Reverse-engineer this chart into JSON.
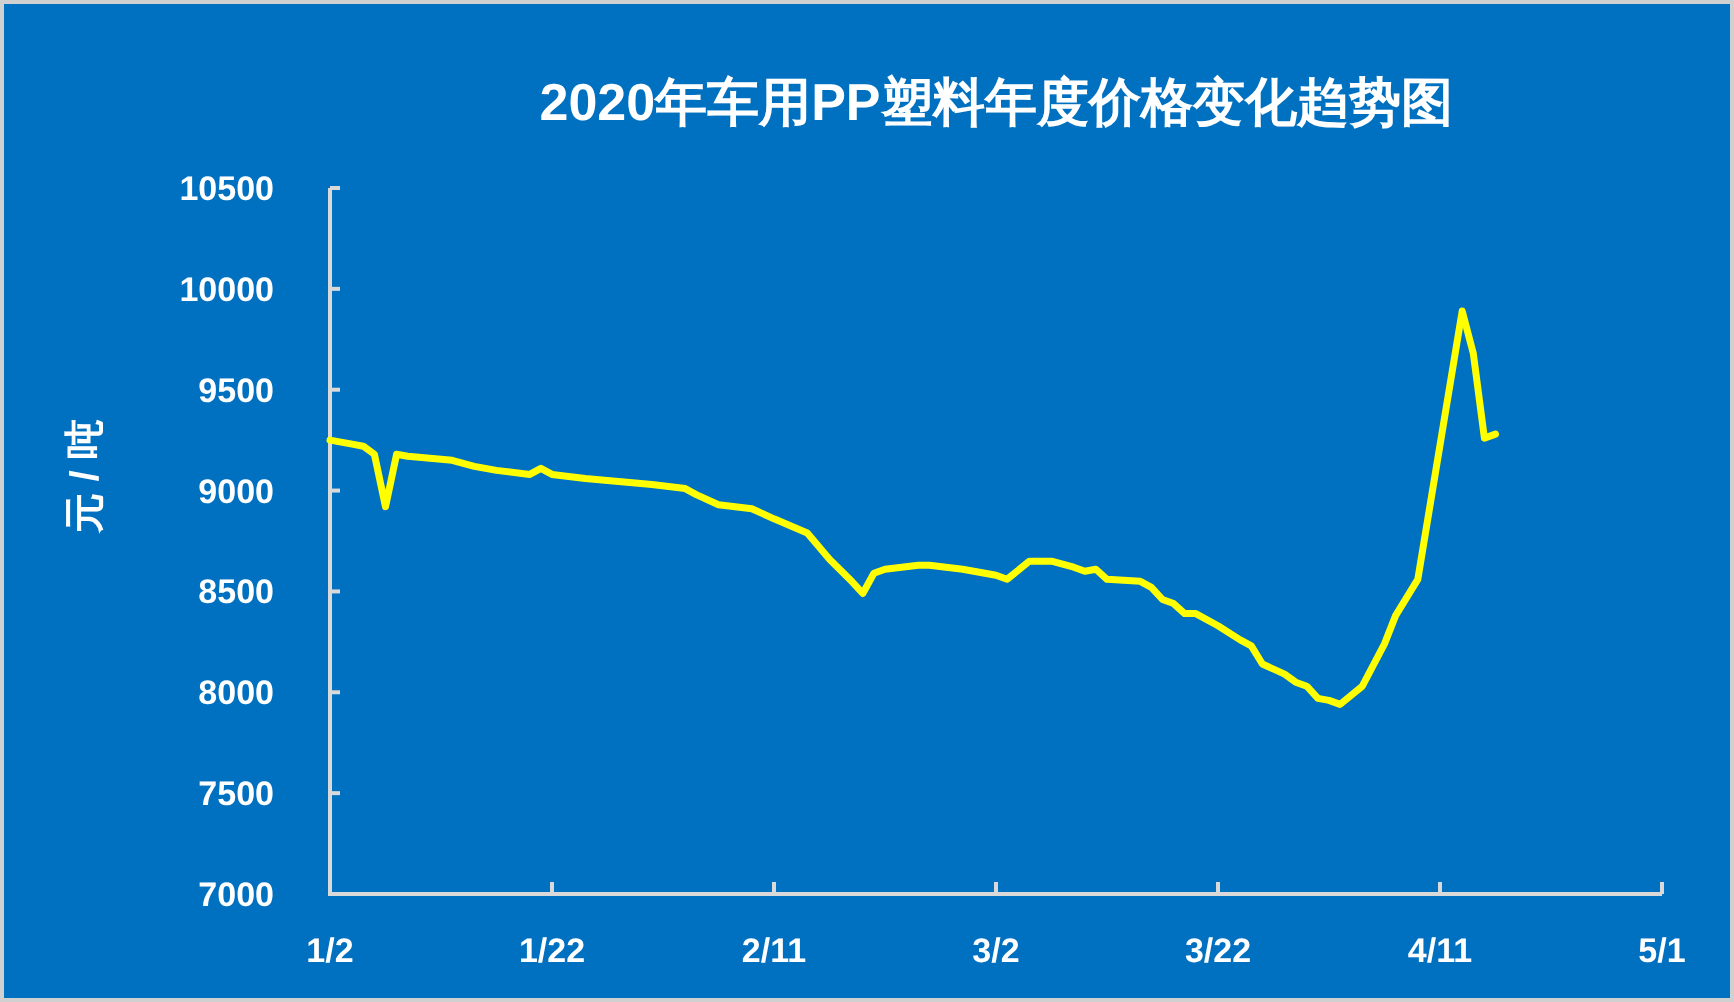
{
  "chart_data": {
    "type": "line",
    "title": "2020年车用PP塑料年度价格变化趋势图",
    "ylabel": "元 / 吨",
    "x": [
      "2020-01-02",
      "2020-01-04",
      "2020-01-05",
      "2020-01-06",
      "2020-01-07",
      "2020-01-08",
      "2020-01-09",
      "2020-01-11",
      "2020-01-13",
      "2020-01-15",
      "2020-01-17",
      "2020-01-20",
      "2020-01-21",
      "2020-01-22",
      "2020-01-25",
      "2020-01-31",
      "2020-02-03",
      "2020-02-04",
      "2020-02-06",
      "2020-02-09",
      "2020-02-11",
      "2020-02-14",
      "2020-02-16",
      "2020-02-18",
      "2020-02-19",
      "2020-02-20",
      "2020-02-21",
      "2020-02-24",
      "2020-02-25",
      "2020-02-28",
      "2020-03-02",
      "2020-03-03",
      "2020-03-05",
      "2020-03-07",
      "2020-03-09",
      "2020-03-10",
      "2020-03-11",
      "2020-03-12",
      "2020-03-15",
      "2020-03-16",
      "2020-03-17",
      "2020-03-18",
      "2020-03-19",
      "2020-03-20",
      "2020-03-22",
      "2020-03-24",
      "2020-03-25",
      "2020-03-26",
      "2020-03-28",
      "2020-03-29",
      "2020-03-30",
      "2020-03-31",
      "2020-04-01",
      "2020-04-02",
      "2020-04-04",
      "2020-04-06",
      "2020-04-07",
      "2020-04-09",
      "2020-04-13",
      "2020-04-14",
      "2020-04-15",
      "2020-04-16"
    ],
    "series": [
      {
        "color": "#ffff00",
        "values": [
          9250,
          9230,
          9220,
          9180,
          8920,
          9180,
          9170,
          9160,
          9150,
          9120,
          9100,
          9080,
          9110,
          9080,
          9060,
          9030,
          9010,
          8980,
          8930,
          8910,
          8860,
          8790,
          8660,
          8550,
          8490,
          8590,
          8610,
          8630,
          8630,
          8610,
          8580,
          8560,
          8650,
          8650,
          8620,
          8600,
          8610,
          8560,
          8550,
          8520,
          8460,
          8440,
          8390,
          8390,
          8330,
          8260,
          8230,
          8140,
          8090,
          8050,
          8030,
          7970,
          7960,
          7940,
          8030,
          8240,
          8380,
          8560,
          9890,
          9680,
          9260,
          9280
        ]
      }
    ],
    "xlim": [
      "2020-01-02",
      "2020-05-01"
    ],
    "xticks": [
      {
        "value": "2020-01-02",
        "label": "1/2"
      },
      {
        "value": "2020-01-22",
        "label": "1/22"
      },
      {
        "value": "2020-02-11",
        "label": "2/11"
      },
      {
        "value": "2020-03-02",
        "label": "3/2"
      },
      {
        "value": "2020-03-22",
        "label": "3/22"
      },
      {
        "value": "2020-04-11",
        "label": "4/11"
      },
      {
        "value": "2020-05-01",
        "label": "5/1"
      }
    ],
    "ylim": [
      7000,
      10500
    ],
    "yticks": [
      7000,
      7500,
      8000,
      8500,
      9000,
      9500,
      10000,
      10500
    ]
  }
}
